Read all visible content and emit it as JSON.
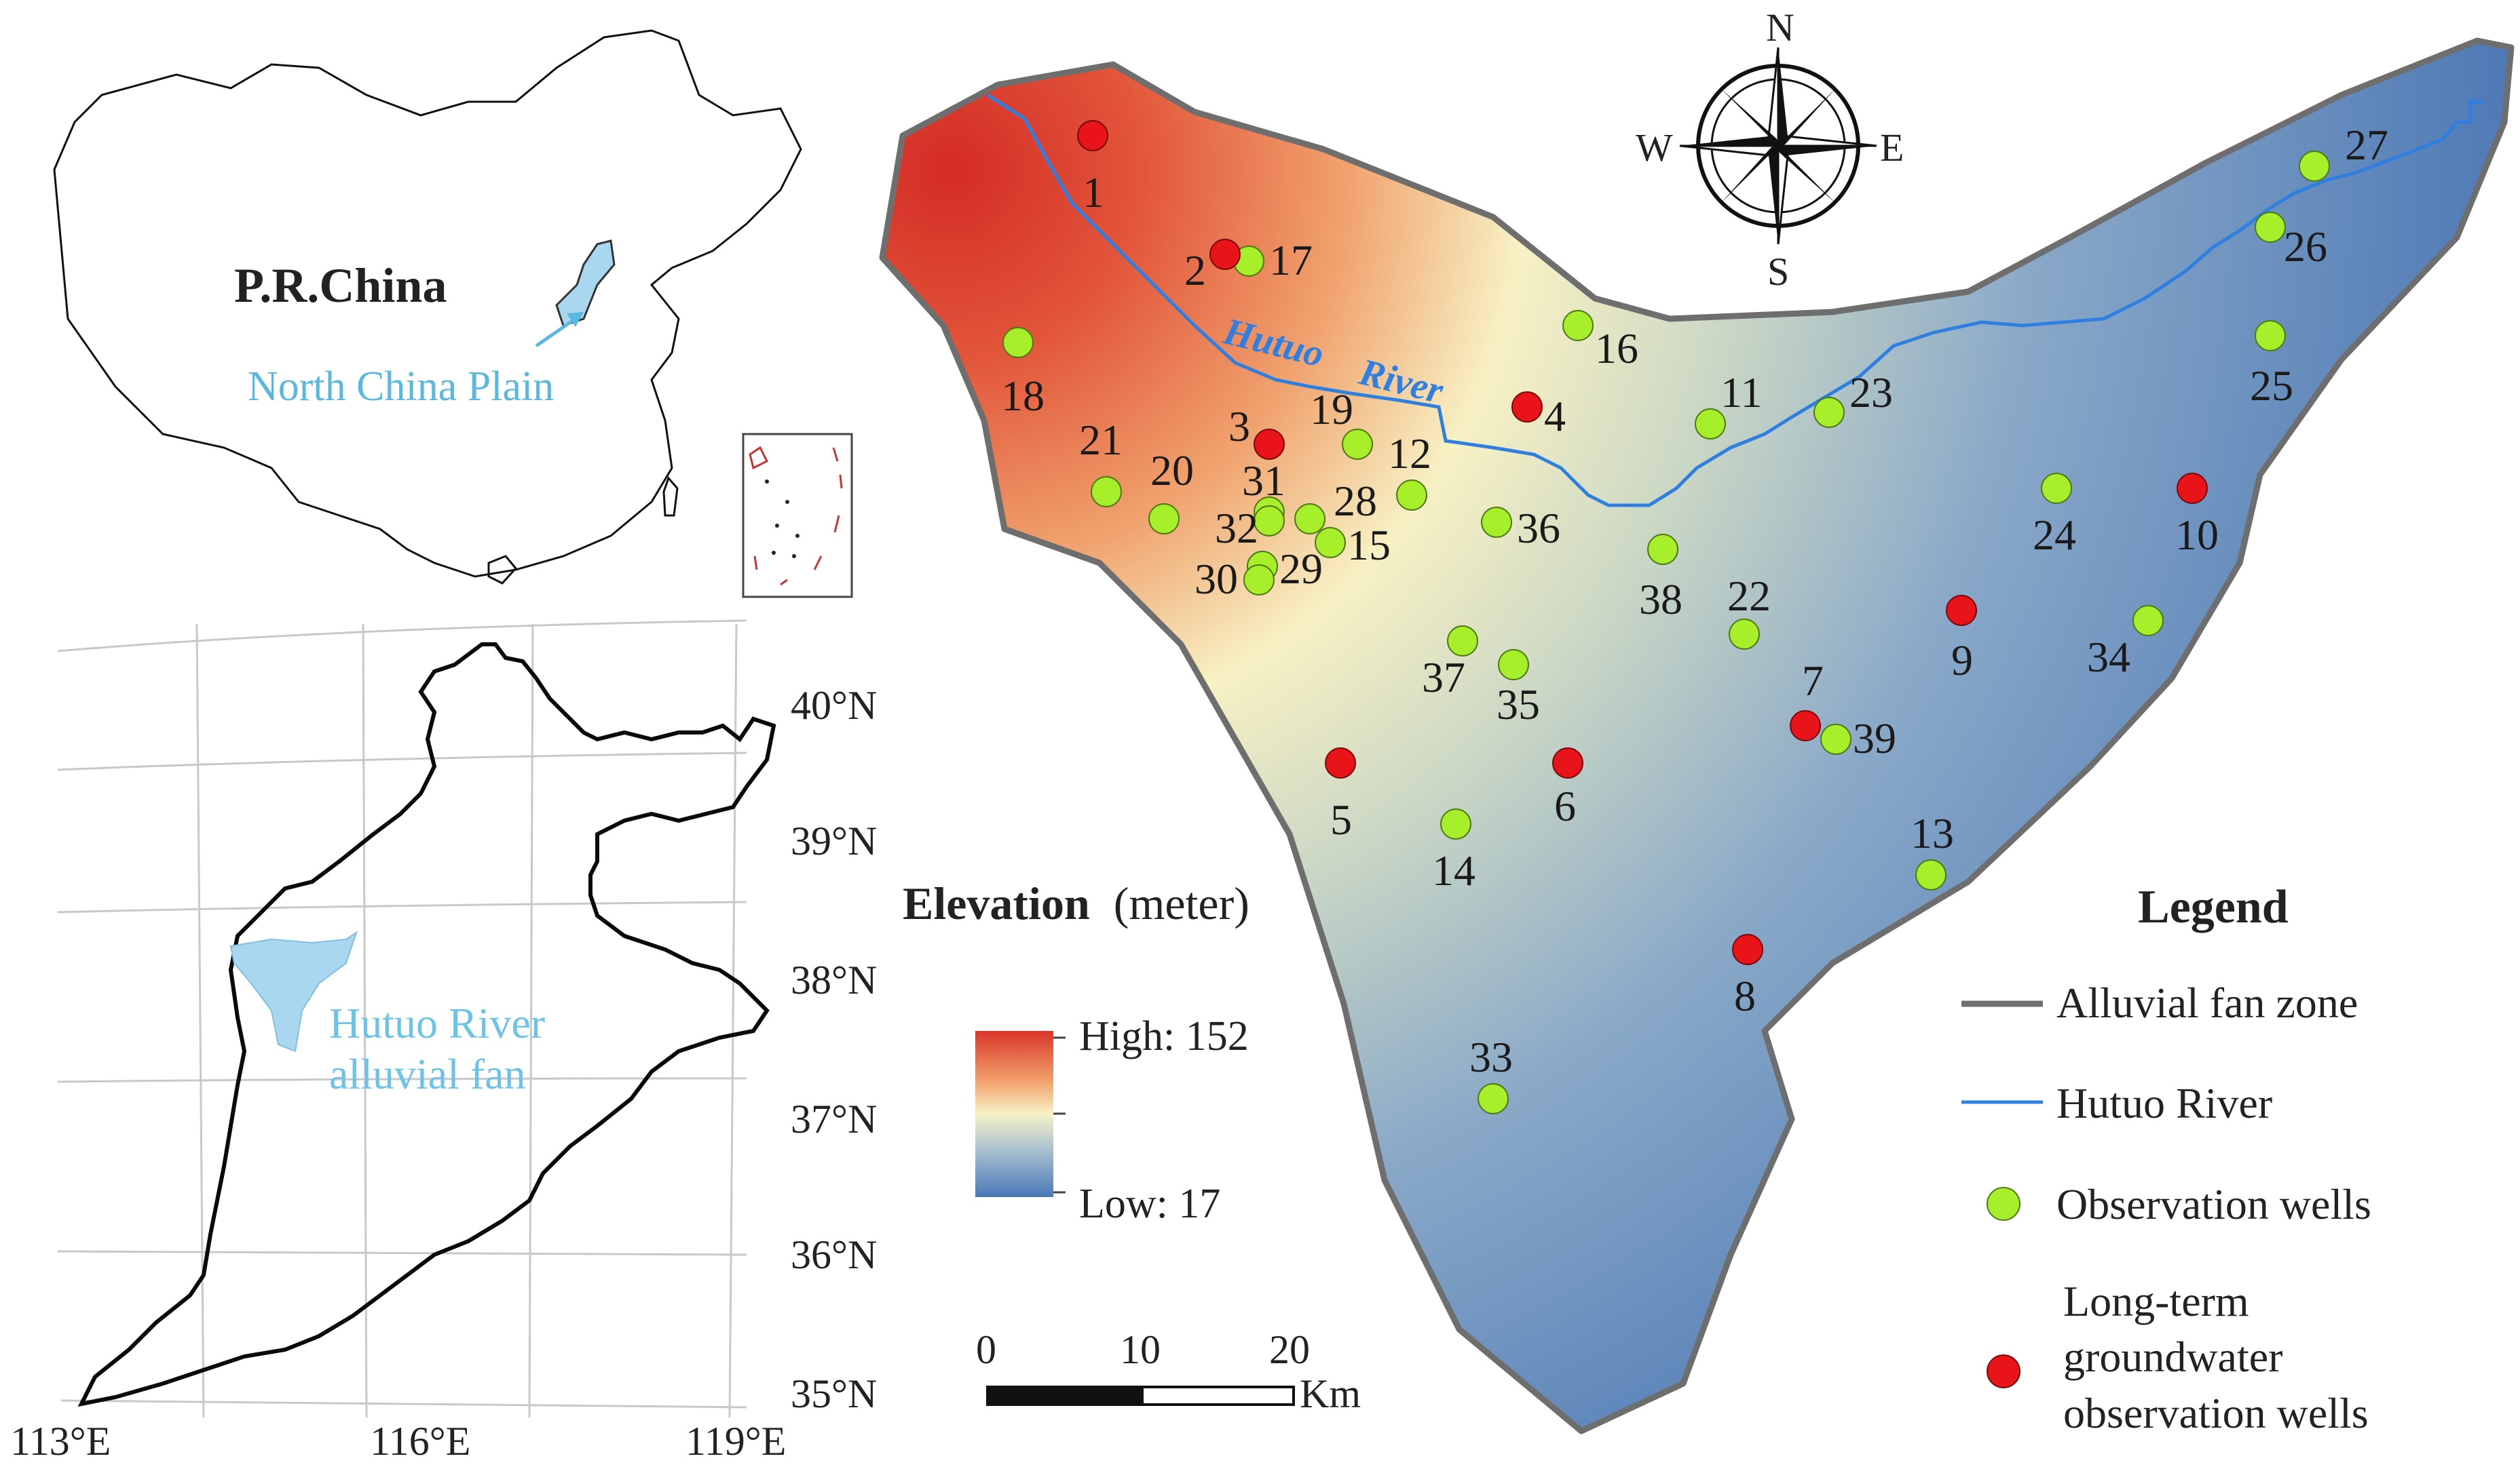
{
  "china_map": {
    "country_label": "P.R.China",
    "plain_label": "North China Plain"
  },
  "regional_map": {
    "fan_label_line1": "Hutuo River",
    "fan_label_line2": "alluvial fan",
    "lat_labels": [
      "40°N",
      "39°N",
      "38°N",
      "37°N",
      "36°N",
      "35°N"
    ],
    "lon_labels": [
      "113°E",
      "116°E",
      "119°E"
    ]
  },
  "compass": {
    "n": "N",
    "s": "S",
    "e": "E",
    "w": "W"
  },
  "river_label_1": "Hutuo",
  "river_label_2": "River",
  "elevation": {
    "title_bold": "Elevation",
    "title_unit": "(meter)",
    "high_label": "High: 152",
    "low_label": "Low: 17",
    "high": 152,
    "low": 17
  },
  "scale_bar": {
    "ticks": [
      "0",
      "10",
      "20"
    ],
    "unit": "Km"
  },
  "legend": {
    "title": "Legend",
    "fan_zone": "Alluvial fan zone",
    "river": "Hutuo River",
    "obs_wells": "Observation wells",
    "lt_line1": "Long-term",
    "lt_line2": "groundwater",
    "lt_line3": "observation wells"
  },
  "colors": {
    "river": "#2f7fe0",
    "observation_well": "#a6ef2a",
    "long_term_well": "#e8141a",
    "fan_boundary": "#6e6e6e",
    "plain_fill": "#a9d7f0",
    "elev_high": "#d9362b",
    "elev_mid": "#f6f2c6",
    "elev_low": "#4a78b8"
  },
  "wells": {
    "observation": [
      "11",
      "12",
      "13",
      "14",
      "15",
      "16",
      "17",
      "18",
      "19",
      "20",
      "21",
      "22",
      "23",
      "24",
      "25",
      "26",
      "27",
      "28",
      "29",
      "30",
      "31",
      "32",
      "33",
      "34",
      "35",
      "36",
      "37",
      "38",
      "39"
    ],
    "long_term": [
      "1",
      "2",
      "3",
      "4",
      "5",
      "6",
      "7",
      "8",
      "9",
      "10"
    ]
  }
}
